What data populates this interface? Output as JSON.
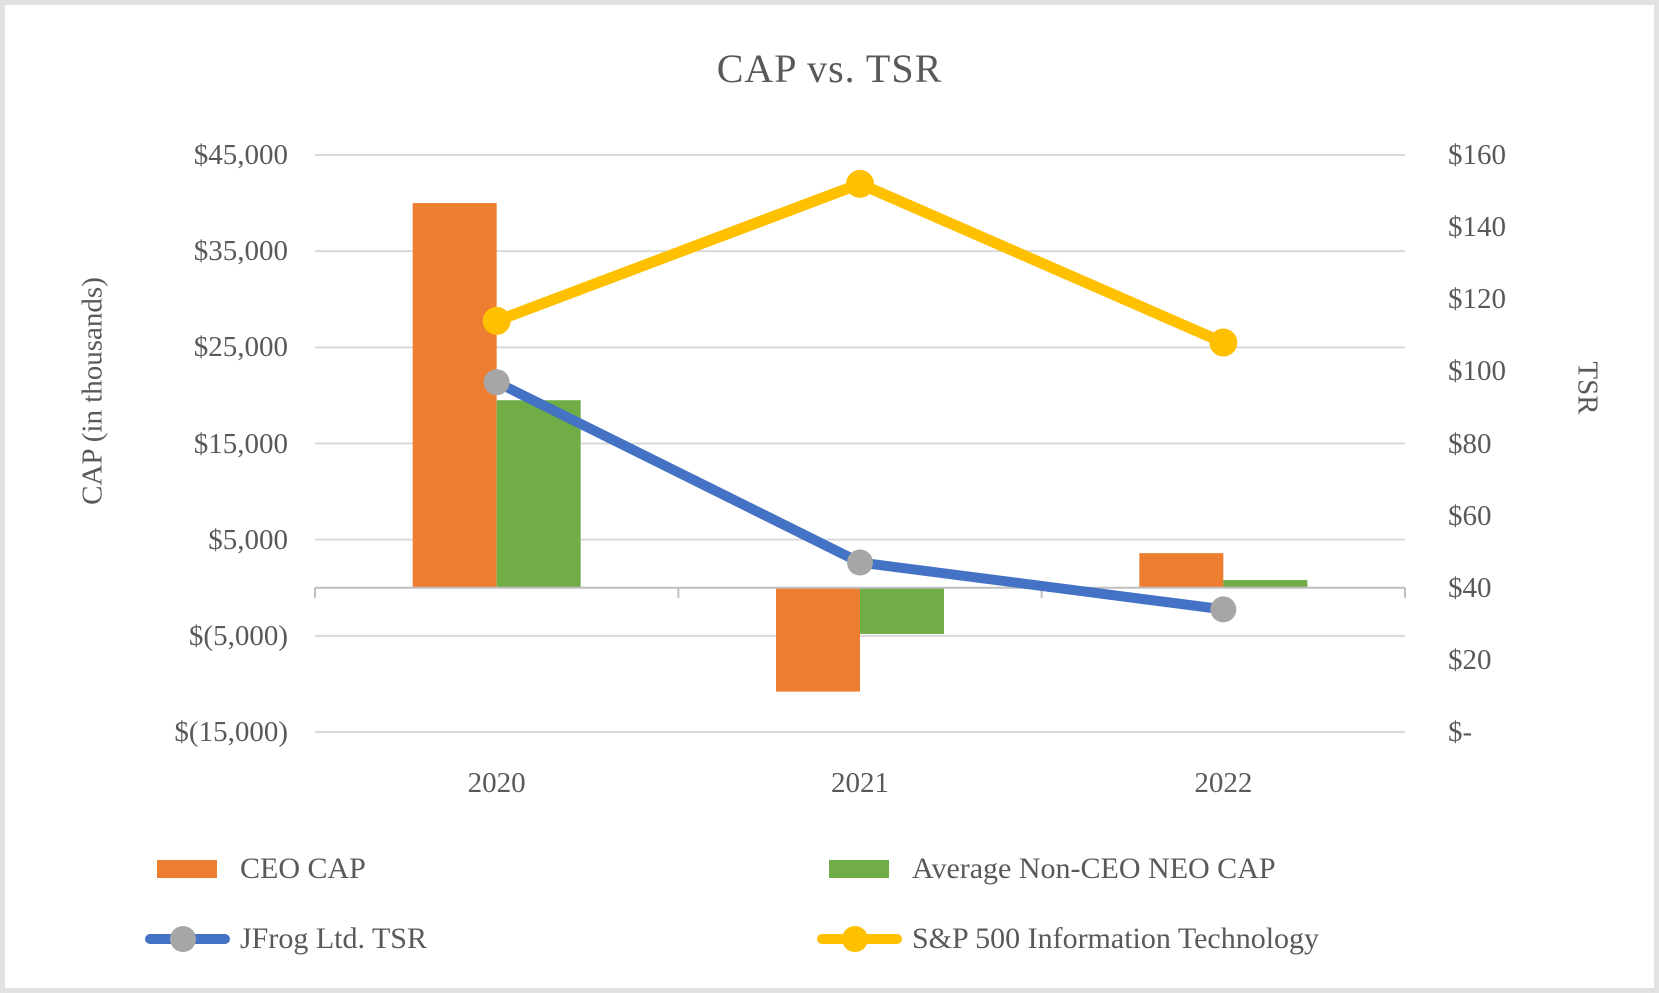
{
  "frame": {
    "background": "#ffffff",
    "border_color": "#e2e2e2"
  },
  "chart_data": {
    "type": "combo-bar-line",
    "title": "CAP vs. TSR",
    "categories": [
      "2020",
      "2021",
      "2022"
    ],
    "bar_series": [
      {
        "name": "CEO CAP",
        "color": "#ED7D31",
        "axis": "left",
        "values": [
          40000,
          -10800,
          3600
        ]
      },
      {
        "name": "Average Non-CEO NEO CAP",
        "color": "#70AD47",
        "axis": "left",
        "values": [
          19500,
          -4800,
          800
        ]
      }
    ],
    "line_series": [
      {
        "name": "JFrog Ltd. TSR",
        "color": "#4472C4",
        "marker_color": "#A6A6A6",
        "axis": "right",
        "values": [
          97,
          47,
          34
        ]
      },
      {
        "name": "S&P 500 Information Technology",
        "color": "#FFC000",
        "marker_color": "#FFC000",
        "axis": "right",
        "values": [
          114,
          152,
          108
        ]
      }
    ],
    "left_axis": {
      "title": "CAP (in thousands)",
      "min": -15000,
      "max": 45000,
      "tick_step": 10000,
      "tick_labels": [
        "$45,000",
        "$35,000",
        "$25,000",
        "$15,000",
        "$5,000",
        "$(5,000)",
        "$(15,000)"
      ]
    },
    "right_axis": {
      "title": "TSR",
      "min": 0,
      "max": 160,
      "tick_step": 20,
      "tick_labels": [
        "$160",
        "$140",
        "$120",
        "$100",
        "$80",
        "$60",
        "$40",
        "$20",
        "$-"
      ]
    },
    "grid": {
      "on": true,
      "color": "#D9D9D9",
      "zero_line_color": "#BFBFBF"
    },
    "text_color": "#595959",
    "legend_position": "bottom"
  }
}
